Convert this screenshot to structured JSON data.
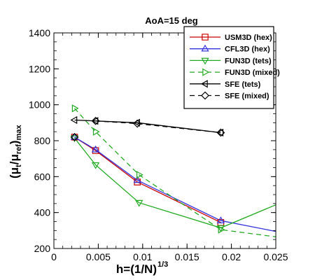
{
  "chart_data": {
    "type": "line",
    "title": "AoA=15 deg",
    "xlabel": {
      "main": "h=(1/N)",
      "sup": "1/3"
    },
    "ylabel": {
      "open": "(μ",
      "sub1": "t",
      "mid": "/μ",
      "sub2": "ref",
      "close": ")",
      "sub3": "max"
    },
    "xlim": [
      0,
      0.025
    ],
    "ylim": [
      200,
      1400
    ],
    "xticks": [
      "0",
      "0.005",
      "0.01",
      "0.015",
      "0.02",
      "0.025"
    ],
    "xtick_values": [
      0,
      0.005,
      0.01,
      0.015,
      0.02,
      0.025
    ],
    "yticks": [
      "200",
      "400",
      "600",
      "800",
      "1000",
      "1200",
      "1400"
    ],
    "ytick_values": [
      200,
      400,
      600,
      800,
      1000,
      1200,
      1400
    ],
    "legend_position": "top-right",
    "series": [
      {
        "name": "USM3D (hex)",
        "color": "#cc0000",
        "dash": "solid",
        "marker": "square",
        "x": [
          0.00233,
          0.0047,
          0.0094,
          0.0188
        ],
        "y": [
          820,
          745,
          570,
          345
        ]
      },
      {
        "name": "CFL3D (hex)",
        "color": "#3333dd",
        "dash": "solid",
        "marker": "triangle-up",
        "x": [
          0.00233,
          0.0047,
          0.0094,
          0.0188
        ],
        "y": [
          820,
          750,
          580,
          355
        ],
        "line_x": [
          0.00233,
          0.0047,
          0.0094,
          0.0188,
          0.025
        ],
        "line_y": [
          820,
          750,
          580,
          355,
          295
        ]
      },
      {
        "name": "FUN3D (tets)",
        "color": "#22aa22",
        "dash": "solid",
        "marker": "triangle-down",
        "x": [
          0.00233,
          0.0047,
          0.0096,
          0.0188
        ],
        "y": [
          815,
          665,
          455,
          315
        ],
        "line_x": [
          0.00233,
          0.0047,
          0.0096,
          0.0188,
          0.025
        ],
        "line_y": [
          815,
          665,
          455,
          315,
          443
        ]
      },
      {
        "name": "FUN3D (mixed)",
        "color": "#22aa22",
        "dash": "dashed",
        "marker": "triangle-right",
        "x": [
          0.00233,
          0.0047,
          0.0096,
          0.0188
        ],
        "y": [
          980,
          850,
          610,
          305
        ],
        "line_x": [
          0.00233,
          0.0047,
          0.0096,
          0.0188,
          0.025
        ],
        "line_y": [
          980,
          850,
          610,
          305,
          265
        ]
      },
      {
        "name": "SFE (tets)",
        "color": "#000000",
        "dash": "solid",
        "marker": "triangle-left",
        "x": [
          0.00233,
          0.0047,
          0.0094,
          0.0188
        ],
        "y": [
          915,
          910,
          900,
          845
        ]
      },
      {
        "name": "SFE (mixed)",
        "color": "#000000",
        "dash": "dashed",
        "marker": "diamond",
        "x": [
          0.00233,
          0.0047,
          0.0094,
          0.0188
        ],
        "y": [
          820,
          910,
          895,
          845
        ],
        "line_x": [
          0.0047,
          0.0094,
          0.0188
        ],
        "line_y": [
          910,
          895,
          845
        ]
      }
    ]
  }
}
